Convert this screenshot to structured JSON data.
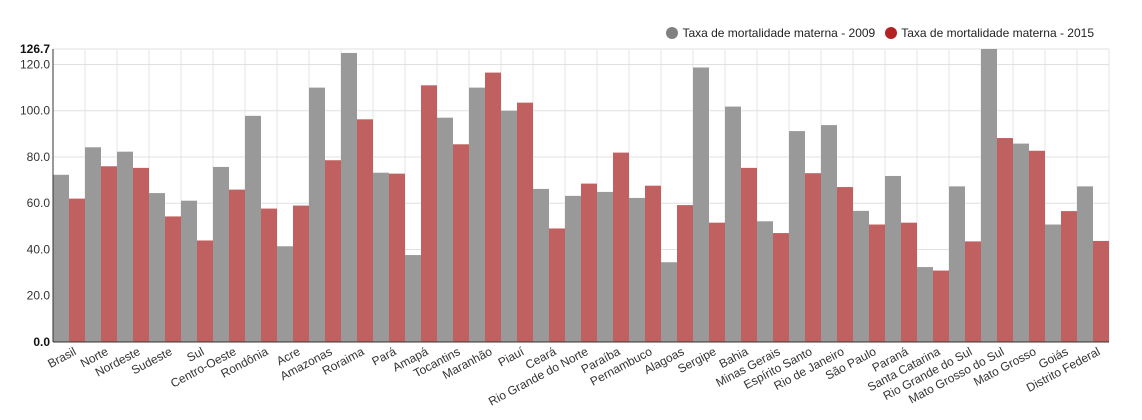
{
  "chart_data": {
    "type": "bar",
    "title": "",
    "xlabel": "",
    "ylabel": "",
    "ylim": [
      0,
      126.7
    ],
    "y_ticks": [
      "0.0",
      "20.0",
      "40.0",
      "60.0",
      "80.0",
      "100.0",
      "120.0"
    ],
    "y_max_label": "126.7",
    "legend_position": "top-right",
    "grid": true,
    "categories": [
      "Brasil",
      "Norte",
      "Nordeste",
      "Sudeste",
      "Sul",
      "Centro-Oeste",
      "Rondônia",
      "Acre",
      "Amazonas",
      "Roraima",
      "Pará",
      "Amapá",
      "Tocantins",
      "Maranhão",
      "Piauí",
      "Ceará",
      "Rio Grande do Norte",
      "Paraíba",
      "Pernambuco",
      "Alagoas",
      "Sergipe",
      "Bahia",
      "Minas Gerais",
      "Espírito Santo",
      "Rio de Janeiro",
      "São Paulo",
      "Paraná",
      "Santa Catarina",
      "Rio Grande do Sul",
      "Mato Grosso do Sul",
      "Mato Grosso",
      "Goiás",
      "Distrito Federal"
    ],
    "series": [
      {
        "name": "Taxa de mortalidade materna - 2009",
        "color": "#999999",
        "legend_color": "#808080",
        "values": [
          72.3,
          84.2,
          82.3,
          64.4,
          61.1,
          75.7,
          97.8,
          41.4,
          110.0,
          125.0,
          73.2,
          37.6,
          97.0,
          110.0,
          100.0,
          66.2,
          63.2,
          64.9,
          62.3,
          34.5,
          118.7,
          101.8,
          52.2,
          91.2,
          93.8,
          56.7,
          71.8,
          32.4,
          67.3,
          127.0,
          85.8,
          50.8,
          67.3
        ]
      },
      {
        "name": "Taxa de mortalidade materna - 2015",
        "color": "#c06060",
        "legend_color": "#b22222",
        "values": [
          62.0,
          76.0,
          75.3,
          54.3,
          43.9,
          65.9,
          57.7,
          59.0,
          78.6,
          96.3,
          72.8,
          111.0,
          85.5,
          116.5,
          103.5,
          49.1,
          68.5,
          81.9,
          67.6,
          59.2,
          51.6,
          75.3,
          47.1,
          73.0,
          67.0,
          50.8,
          51.6,
          30.9,
          43.5,
          88.2,
          82.7,
          56.6,
          43.7
        ]
      }
    ]
  }
}
